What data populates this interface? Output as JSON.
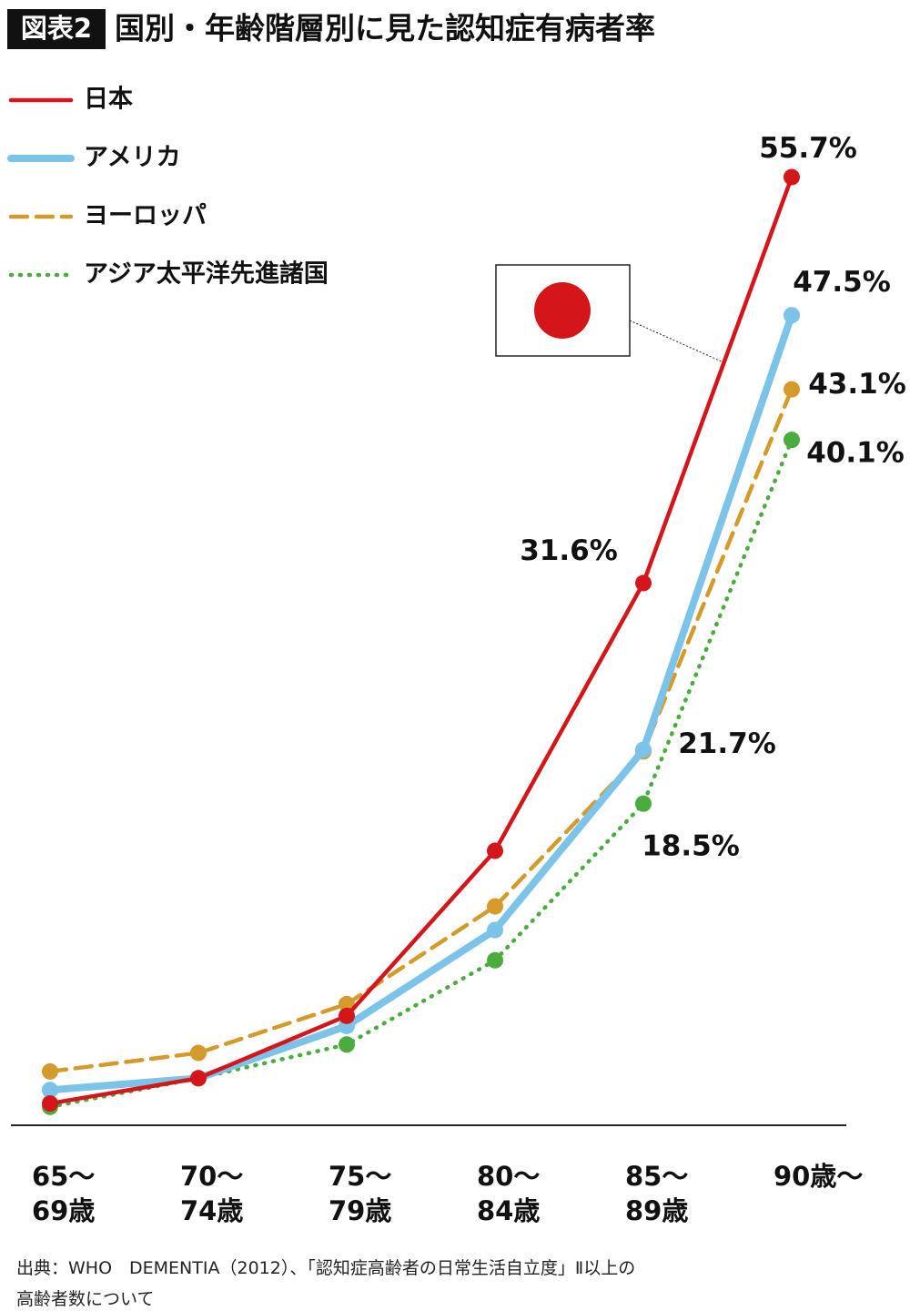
{
  "chart_data": {
    "type": "line",
    "badge": "図表2",
    "title": "国別・年齢階層別に見た認知症有病者率",
    "categories": [
      "65～\n69歳",
      "70～\n74歳",
      "75～\n79歳",
      "80～\n84歳",
      "85～\n89歳",
      "90歳～"
    ],
    "series": [
      {
        "name": "日本",
        "color": "#d4161b",
        "style": "solid",
        "values": [
          0.7,
          2.2,
          5.9,
          15.7,
          31.6,
          55.7
        ],
        "value_labels": [
          null,
          null,
          null,
          null,
          "31.6%",
          "55.7%"
        ]
      },
      {
        "name": "アメリカ",
        "color": "#7cc3ea",
        "style": "solid",
        "values": [
          1.5,
          2.2,
          5.3,
          11.0,
          21.7,
          47.5
        ],
        "value_labels": [
          null,
          null,
          null,
          null,
          "21.7%",
          "47.5%"
        ]
      },
      {
        "name": "ヨーロッパ",
        "color": "#d49a2a",
        "style": "dashed",
        "values": [
          2.6,
          3.7,
          6.6,
          12.4,
          21.6,
          43.1
        ],
        "value_labels": [
          null,
          null,
          null,
          null,
          null,
          "43.1%"
        ]
      },
      {
        "name": "アジア太平洋先進諸国",
        "color": "#4aab3e",
        "style": "dotted",
        "values": [
          0.5,
          2.2,
          4.2,
          9.2,
          18.5,
          40.1
        ],
        "value_labels": [
          null,
          null,
          null,
          null,
          "18.5%",
          "40.1%"
        ]
      }
    ],
    "ylim": [
      0,
      60
    ],
    "source": "出典：WHO　DEMENTIA（2012）、「認知症高齢者の日常生活自立度」Ⅱ以上の\n高齢者数について"
  }
}
